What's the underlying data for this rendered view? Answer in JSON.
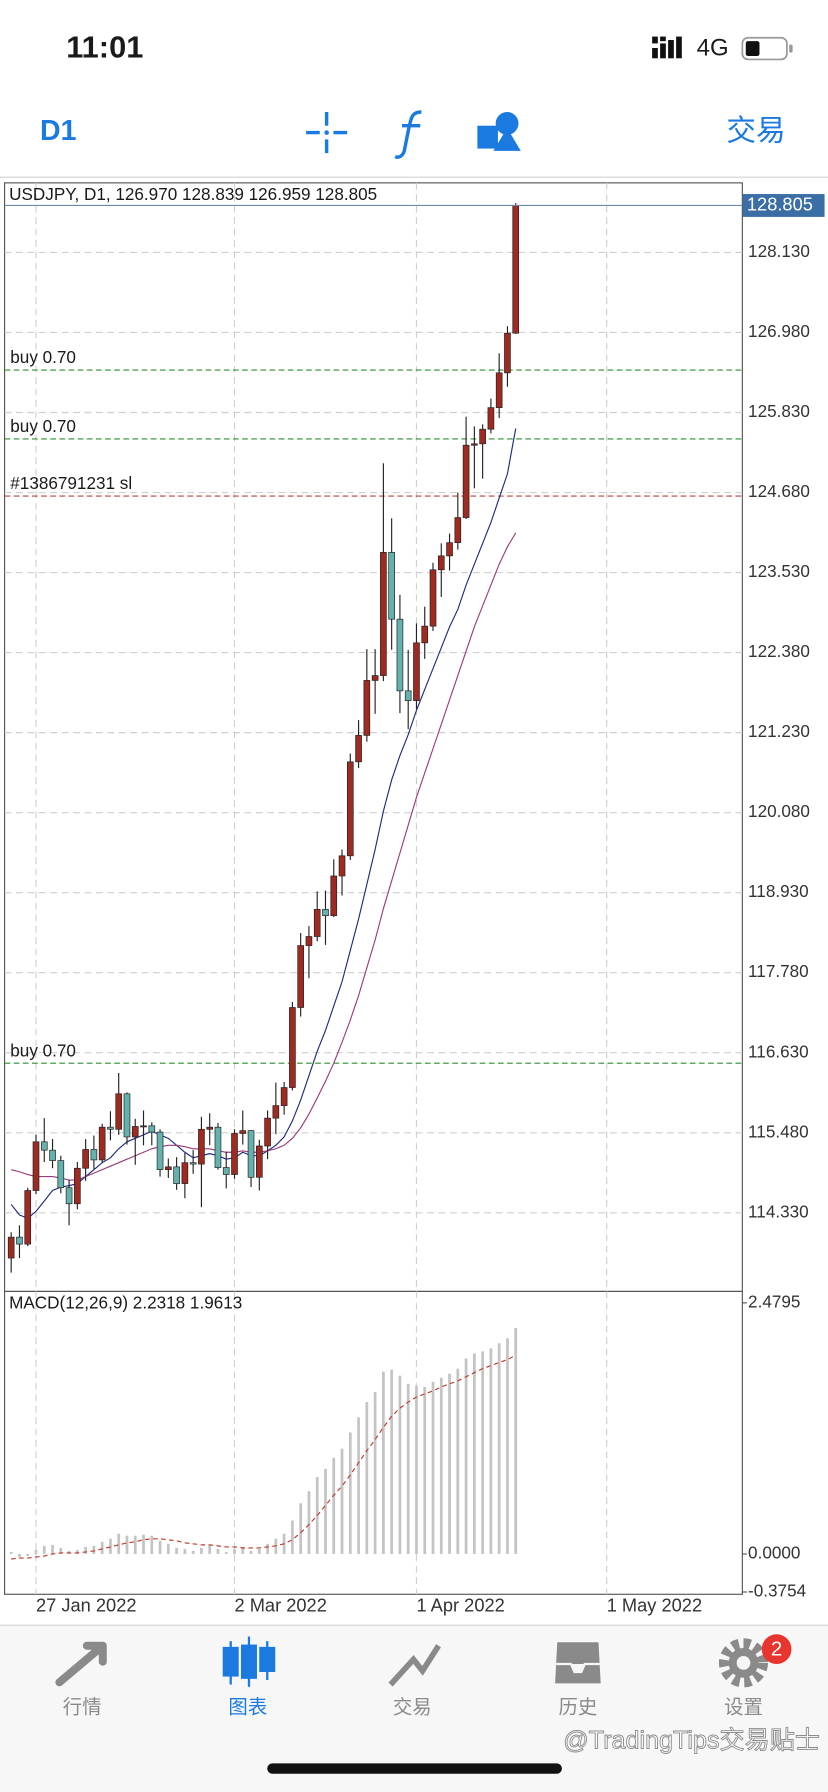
{
  "status_bar": {
    "time": "11:01",
    "network": "4G"
  },
  "toolbar": {
    "timeframe": "D1",
    "trade": "交易"
  },
  "chart_data": {
    "type": "candlestick",
    "title": "USDJPY, D1, 126.970 128.839 126.959 128.805",
    "open": [
      113.68,
      113.98,
      113.88,
      114.65,
      115.35,
      115.23,
      115.08,
      114.69,
      114.46,
      114.97,
      115.24,
      115.09,
      115.56,
      115.53,
      116.04,
      115.42,
      115.57,
      115.58,
      115.49,
      114.95,
      114.99,
      114.75,
      115.05,
      115.03,
      115.53,
      115.56,
      114.98,
      114.88,
      115.47,
      115.51,
      114.84,
      115.29,
      115.69,
      115.87,
      116.13,
      117.28,
      118.17,
      118.3,
      118.69,
      118.6,
      119.17,
      119.46,
      120.81,
      121.19,
      121.98,
      122.05,
      123.82,
      122.86,
      121.83,
      121.69,
      122.52,
      122.76,
      123.57,
      123.77,
      123.96,
      124.32,
      125.36,
      125.38,
      125.59,
      125.9,
      126.4,
      126.97
    ],
    "high": [
      114.05,
      114.15,
      114.69,
      115.45,
      115.69,
      115.39,
      115.15,
      114.8,
      115.06,
      115.39,
      115.44,
      115.61,
      115.79,
      116.34,
      116.06,
      115.68,
      115.8,
      115.63,
      115.53,
      115.11,
      115.13,
      115.19,
      115.23,
      115.71,
      115.76,
      115.62,
      115.21,
      115.53,
      115.8,
      115.52,
      115.38,
      115.8,
      116.2,
      116.21,
      117.36,
      118.35,
      118.45,
      118.95,
      118.96,
      119.41,
      119.55,
      120.93,
      121.41,
      122.43,
      122.43,
      125.1,
      124.31,
      123.21,
      122.42,
      122.8,
      123.04,
      123.67,
      123.95,
      124.09,
      124.68,
      125.77,
      125.63,
      125.66,
      126.03,
      126.68,
      127.07,
      128.839
    ],
    "low": [
      113.47,
      113.68,
      113.85,
      114.6,
      115.06,
      114.97,
      114.61,
      114.15,
      114.38,
      114.79,
      114.96,
      115.05,
      115.37,
      115.45,
      115.31,
      115.02,
      115.3,
      115.3,
      114.85,
      114.83,
      114.66,
      114.54,
      114.89,
      114.41,
      115.3,
      114.95,
      114.68,
      114.82,
      115.31,
      114.7,
      114.65,
      115.1,
      115.46,
      115.74,
      116.09,
      117.15,
      117.7,
      118.23,
      118.18,
      118.58,
      118.89,
      119.4,
      120.72,
      121.1,
      121.5,
      121.97,
      122.42,
      121.51,
      121.28,
      121.57,
      122.29,
      122.69,
      123.18,
      123.56,
      123.86,
      124.3,
      124.74,
      124.88,
      125.53,
      125.75,
      126.2,
      126.959
    ],
    "close": [
      113.98,
      113.88,
      114.65,
      115.35,
      115.23,
      115.08,
      114.69,
      114.46,
      114.97,
      115.24,
      115.09,
      115.56,
      115.53,
      116.04,
      115.42,
      115.57,
      115.58,
      115.49,
      114.95,
      114.99,
      114.75,
      115.05,
      115.03,
      115.53,
      115.56,
      114.98,
      114.88,
      115.47,
      115.51,
      114.84,
      115.29,
      115.69,
      115.87,
      116.13,
      117.28,
      118.17,
      118.3,
      118.69,
      118.6,
      119.17,
      119.46,
      120.81,
      121.19,
      121.98,
      122.05,
      123.82,
      122.86,
      121.83,
      121.69,
      122.52,
      122.76,
      123.57,
      123.77,
      123.96,
      124.32,
      125.36,
      125.38,
      125.59,
      125.9,
      126.4,
      126.97,
      128.805
    ],
    "up_color": "#9e2a22",
    "down_color": "#63b2ad",
    "ma_lines": [
      {
        "color": "#1f2a80",
        "values": [
          114.45,
          114.3,
          114.25,
          114.35,
          114.5,
          114.65,
          114.7,
          114.72,
          114.75,
          114.85,
          114.95,
          115.05,
          115.12,
          115.25,
          115.35,
          115.4,
          115.45,
          115.5,
          115.45,
          115.4,
          115.3,
          115.2,
          115.12,
          115.15,
          115.18,
          115.15,
          115.1,
          115.12,
          115.2,
          115.15,
          115.15,
          115.22,
          115.3,
          115.42,
          115.65,
          115.95,
          116.3,
          116.65,
          116.95,
          117.3,
          117.65,
          118.1,
          118.55,
          119.05,
          119.55,
          120.1,
          120.55,
          120.9,
          121.2,
          121.55,
          121.85,
          122.15,
          122.45,
          122.75,
          123.0,
          123.35,
          123.65,
          123.95,
          124.25,
          124.6,
          124.95,
          125.6
        ]
      },
      {
        "color": "#9a3c78",
        "values": [
          114.95,
          114.92,
          114.88,
          114.85,
          114.85,
          114.85,
          114.83,
          114.8,
          114.8,
          114.85,
          114.9,
          114.95,
          115.0,
          115.05,
          115.1,
          115.15,
          115.2,
          115.25,
          115.28,
          115.3,
          115.3,
          115.28,
          115.25,
          115.25,
          115.25,
          115.22,
          115.2,
          115.2,
          115.22,
          115.2,
          115.2,
          115.22,
          115.25,
          115.3,
          115.4,
          115.55,
          115.75,
          115.98,
          116.22,
          116.48,
          116.78,
          117.1,
          117.45,
          117.85,
          118.25,
          118.7,
          119.1,
          119.5,
          119.9,
          120.3,
          120.65,
          121.0,
          121.35,
          121.7,
          122.05,
          122.4,
          122.75,
          123.05,
          123.35,
          123.65,
          123.9,
          124.1
        ]
      }
    ],
    "orders": [
      {
        "label": "buy 0.70",
        "value": 126.44,
        "color": "#2f8f2f"
      },
      {
        "label": "buy 0.70",
        "value": 125.45,
        "color": "#2f8f2f"
      },
      {
        "label": "#1386791231 sl",
        "value": 124.63,
        "color": "#b84040"
      },
      {
        "label": "buy 0.70",
        "value": 116.48,
        "color": "#2f8f2f"
      }
    ],
    "xlim": [
      -0.8,
      88.4
    ],
    "xticks": [
      {
        "value": 3,
        "label": "27 Jan 2022"
      },
      {
        "value": 27,
        "label": "2 Mar 2022"
      },
      {
        "value": 49,
        "label": "1 Apr 2022"
      },
      {
        "value": 72,
        "label": "1 May 2022"
      }
    ],
    "ylim": [
      113.2,
      129.13
    ],
    "yticks": [
      {
        "value": 128.13,
        "label": "128.130"
      },
      {
        "value": 126.98,
        "label": "126.980"
      },
      {
        "value": 125.83,
        "label": "125.830"
      },
      {
        "value": 124.68,
        "label": "124.680"
      },
      {
        "value": 123.53,
        "label": "123.530"
      },
      {
        "value": 122.38,
        "label": "122.380"
      },
      {
        "value": 121.23,
        "label": "121.230"
      },
      {
        "value": 120.08,
        "label": "120.080"
      },
      {
        "value": 118.93,
        "label": "118.930"
      },
      {
        "value": 117.78,
        "label": "117.780"
      },
      {
        "value": 116.63,
        "label": "116.630"
      },
      {
        "value": 115.48,
        "label": "115.480"
      },
      {
        "value": 114.33,
        "label": "114.330"
      }
    ],
    "grid": true,
    "macd": {
      "title": "MACD(12,26,9) 2.2318 1.9613",
      "hist_color": "#c4c4c4",
      "signal_color": "#c0392b",
      "histogram": [
        0.02,
        -0.03,
        -0.02,
        0.04,
        0.08,
        0.09,
        0.06,
        0.03,
        0.04,
        0.07,
        0.08,
        0.12,
        0.15,
        0.2,
        0.18,
        0.18,
        0.19,
        0.18,
        0.13,
        0.1,
        0.06,
        0.05,
        0.03,
        0.06,
        0.09,
        0.05,
        0.02,
        0.05,
        0.07,
        0.03,
        0.05,
        0.1,
        0.15,
        0.2,
        0.33,
        0.5,
        0.62,
        0.76,
        0.84,
        0.95,
        1.04,
        1.2,
        1.35,
        1.5,
        1.6,
        1.8,
        1.82,
        1.76,
        1.68,
        1.66,
        1.65,
        1.7,
        1.74,
        1.78,
        1.83,
        1.93,
        1.98,
        2.0,
        2.03,
        2.08,
        2.13,
        2.2318
      ],
      "signal": [
        -0.05,
        -0.04,
        -0.04,
        -0.03,
        -0.02,
        0.0,
        0.01,
        0.01,
        0.01,
        0.02,
        0.03,
        0.05,
        0.07,
        0.09,
        0.11,
        0.12,
        0.14,
        0.15,
        0.15,
        0.14,
        0.13,
        0.11,
        0.1,
        0.09,
        0.09,
        0.08,
        0.07,
        0.07,
        0.06,
        0.06,
        0.06,
        0.07,
        0.08,
        0.1,
        0.14,
        0.21,
        0.29,
        0.38,
        0.48,
        0.58,
        0.67,
        0.78,
        0.9,
        1.02,
        1.13,
        1.25,
        1.36,
        1.44,
        1.5,
        1.55,
        1.58,
        1.61,
        1.65,
        1.68,
        1.71,
        1.75,
        1.79,
        1.83,
        1.86,
        1.89,
        1.92,
        1.9613
      ],
      "ylim": [
        -0.3754,
        2.4795
      ],
      "yticks": [
        2.4795,
        {
          "value": 0,
          "label": "0.0000"
        },
        -0.3754
      ]
    }
  },
  "tab_bar": {
    "items": [
      "行情",
      "图表",
      "交易",
      "历史",
      "设置"
    ],
    "active": 1,
    "badge": "2"
  },
  "watermark": "@TradingTips交易贴士"
}
